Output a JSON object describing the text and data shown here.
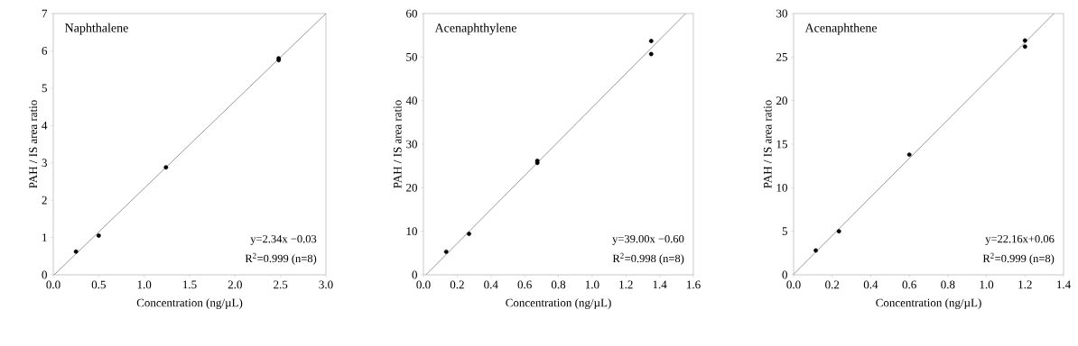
{
  "chart_data": [
    {
      "type": "scatter",
      "title": "Naphthalene",
      "xlabel": "Concentration (ng/µL)",
      "ylabel": "PAH / IS area ratio",
      "xlim": [
        0,
        3.0
      ],
      "ylim": [
        0,
        7
      ],
      "xticks": [
        {
          "value": 0,
          "label": "0.0"
        },
        {
          "value": 0.5,
          "label": "0.5"
        },
        {
          "value": 1.0,
          "label": "1.0"
        },
        {
          "value": 1.5,
          "label": "1.5"
        },
        {
          "value": 2.0,
          "label": "2.0"
        },
        {
          "value": 2.5,
          "label": "2.5"
        },
        {
          "value": 3.0,
          "label": "3.0"
        }
      ],
      "yticks": [
        0,
        1,
        2,
        3,
        4,
        5,
        6,
        7
      ],
      "series": [
        {
          "color": "#000000",
          "marker": "circle",
          "x": [
            0.25,
            0.5,
            1.24,
            2.48,
            2.48
          ],
          "values": [
            0.62,
            1.05,
            2.88,
            5.75,
            5.8
          ]
        },
        {
          "type": "line",
          "color": "#808080",
          "x": [
            0.01,
            3.0
          ],
          "values": [
            0,
            7
          ]
        }
      ],
      "annotations": [
        "y=2.34x −0.03",
        "R$^{2}$=0.999 (n=8)"
      ]
    },
    {
      "type": "scatter",
      "title": "Acenaphthylene",
      "xlabel": "Concentration (ng/µL)",
      "ylabel": "PAH / IS area ratio",
      "xlim": [
        0,
        1.6
      ],
      "ylim": [
        0,
        60
      ],
      "xticks": [
        {
          "value": 0,
          "label": "0.0"
        },
        {
          "value": 0.2,
          "label": "0.2"
        },
        {
          "value": 0.4,
          "label": "0.4"
        },
        {
          "value": 0.6,
          "label": "0.6"
        },
        {
          "value": 0.8,
          "label": "0.8"
        },
        {
          "value": 1.0,
          "label": "1.0"
        },
        {
          "value": 1.2,
          "label": "1.2"
        },
        {
          "value": 1.4,
          "label": "1.4"
        },
        {
          "value": 1.6,
          "label": "1.6"
        }
      ],
      "yticks": [
        0,
        10,
        20,
        30,
        40,
        50,
        60
      ],
      "series": [
        {
          "color": "#000000",
          "marker": "circle",
          "x": [
            0.135,
            0.27,
            0.675,
            0.675,
            1.35,
            1.35
          ],
          "values": [
            5.3,
            9.4,
            25.7,
            26.2,
            50.7,
            53.7
          ]
        },
        {
          "type": "line",
          "color": "#808080",
          "x": [
            0.015,
            1.554
          ],
          "values": [
            0,
            60
          ]
        }
      ],
      "annotations": [
        "y=39.00x −0.60",
        "R$^{2}$=0.998 (n=8)"
      ]
    },
    {
      "type": "scatter",
      "title": "Acenaphthene",
      "xlabel": "Concentration (ng/µL)",
      "ylabel": "PAH / IS area ratio",
      "xlim": [
        0,
        1.4
      ],
      "ylim": [
        0,
        30
      ],
      "xticks": [
        {
          "value": 0,
          "label": "0.0"
        },
        {
          "value": 0.2,
          "label": "0.2"
        },
        {
          "value": 0.4,
          "label": "0.4"
        },
        {
          "value": 0.6,
          "label": "0.6"
        },
        {
          "value": 0.8,
          "label": "0.8"
        },
        {
          "value": 1.0,
          "label": "1.0"
        },
        {
          "value": 1.2,
          "label": "1.2"
        },
        {
          "value": 1.4,
          "label": "1.4"
        }
      ],
      "yticks": [
        0,
        5,
        10,
        15,
        20,
        25,
        30
      ],
      "series": [
        {
          "color": "#000000",
          "marker": "circle",
          "x": [
            0.115,
            0.235,
            0.6,
            1.2,
            1.2
          ],
          "values": [
            2.8,
            5.0,
            13.8,
            26.2,
            26.9
          ]
        },
        {
          "type": "line",
          "color": "#808080",
          "x": [
            0,
            1.35
          ],
          "values": [
            0.06,
            30
          ]
        }
      ],
      "annotations": [
        "y=22.16x+0.06",
        "R$^{2}$=0.999 (n=8)"
      ]
    }
  ]
}
